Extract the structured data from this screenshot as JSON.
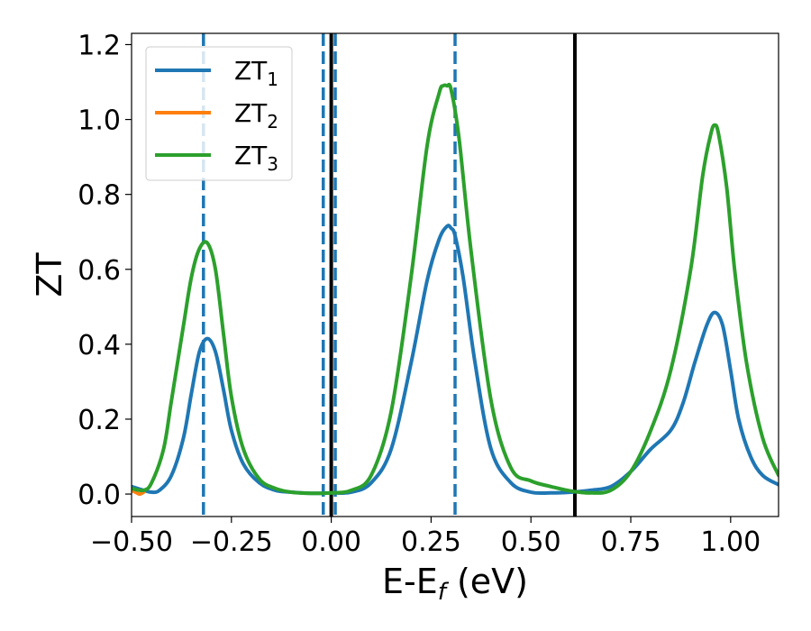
{
  "chart_data": {
    "type": "line",
    "xlabel": "E-E",
    "xlabel_sub": "f",
    "xlabel_unit": " (eV)",
    "ylabel": "ZT",
    "xlim": [
      -0.5,
      1.12
    ],
    "ylim": [
      -0.06,
      1.23
    ],
    "xticks": [
      -0.5,
      -0.25,
      0.0,
      0.25,
      0.5,
      0.75,
      1.0
    ],
    "xtick_labels": [
      "−0.50",
      "−0.25",
      "0.00",
      "0.25",
      "0.50",
      "0.75",
      "1.00"
    ],
    "yticks": [
      0.0,
      0.2,
      0.4,
      0.6,
      0.8,
      1.0,
      1.2
    ],
    "ytick_labels": [
      "0.0",
      "0.2",
      "0.4",
      "0.6",
      "0.8",
      "1.0",
      "1.2"
    ],
    "legend_position": "upper-left",
    "grid": false,
    "vlines_dashed": [
      -0.32,
      -0.02,
      0.01,
      0.31
    ],
    "vlines_solid": [
      0.0,
      0.61
    ],
    "series": [
      {
        "name": "ZT",
        "name_sub": "1",
        "color": "#1f77b4",
        "x": [
          -0.5,
          -0.47,
          -0.45,
          -0.43,
          -0.4,
          -0.37,
          -0.35,
          -0.33,
          -0.31,
          -0.29,
          -0.27,
          -0.25,
          -0.22,
          -0.18,
          -0.14,
          -0.1,
          -0.05,
          0.0,
          0.05,
          0.1,
          0.15,
          0.2,
          0.24,
          0.27,
          0.29,
          0.3,
          0.31,
          0.33,
          0.36,
          0.4,
          0.45,
          0.5,
          0.55,
          0.6,
          0.65,
          0.7,
          0.75,
          0.8,
          0.85,
          0.88,
          0.91,
          0.94,
          0.96,
          0.98,
          1.0,
          1.02,
          1.05,
          1.08,
          1.12
        ],
        "y": [
          0.02,
          0.01,
          0.005,
          0.01,
          0.05,
          0.15,
          0.27,
          0.38,
          0.415,
          0.38,
          0.28,
          0.17,
          0.08,
          0.03,
          0.01,
          0.005,
          0.002,
          0.003,
          0.005,
          0.03,
          0.12,
          0.35,
          0.57,
          0.68,
          0.715,
          0.71,
          0.69,
          0.58,
          0.35,
          0.12,
          0.03,
          0.005,
          0.003,
          0.005,
          0.01,
          0.02,
          0.06,
          0.12,
          0.17,
          0.24,
          0.35,
          0.45,
          0.485,
          0.45,
          0.33,
          0.2,
          0.1,
          0.05,
          0.025
        ]
      },
      {
        "name": "ZT",
        "name_sub": "2",
        "color": "#ff7f0e",
        "x": [
          -0.5,
          -0.49,
          -0.48,
          -0.47
        ],
        "y": [
          0.01,
          0.005,
          0.0,
          0.005
        ]
      },
      {
        "name": "ZT",
        "name_sub": "3",
        "color": "#2ca02c",
        "x": [
          -0.5,
          -0.47,
          -0.45,
          -0.42,
          -0.4,
          -0.37,
          -0.35,
          -0.33,
          -0.31,
          -0.29,
          -0.27,
          -0.25,
          -0.22,
          -0.18,
          -0.14,
          -0.1,
          -0.05,
          0.0,
          0.05,
          0.1,
          0.15,
          0.2,
          0.24,
          0.27,
          0.28,
          0.29,
          0.3,
          0.32,
          0.35,
          0.4,
          0.45,
          0.5,
          0.55,
          0.6,
          0.65,
          0.7,
          0.75,
          0.8,
          0.85,
          0.9,
          0.93,
          0.95,
          0.96,
          0.97,
          0.99,
          1.01,
          1.04,
          1.08,
          1.12
        ],
        "y": [
          0.015,
          0.01,
          0.03,
          0.12,
          0.25,
          0.45,
          0.58,
          0.655,
          0.67,
          0.6,
          0.43,
          0.26,
          0.12,
          0.04,
          0.015,
          0.005,
          0.002,
          0.003,
          0.01,
          0.05,
          0.22,
          0.58,
          0.93,
          1.07,
          1.09,
          1.09,
          1.08,
          0.95,
          0.65,
          0.25,
          0.07,
          0.035,
          0.02,
          0.008,
          0.003,
          0.01,
          0.06,
          0.17,
          0.33,
          0.6,
          0.85,
          0.96,
          0.985,
          0.96,
          0.82,
          0.6,
          0.35,
          0.15,
          0.05
        ]
      }
    ]
  }
}
